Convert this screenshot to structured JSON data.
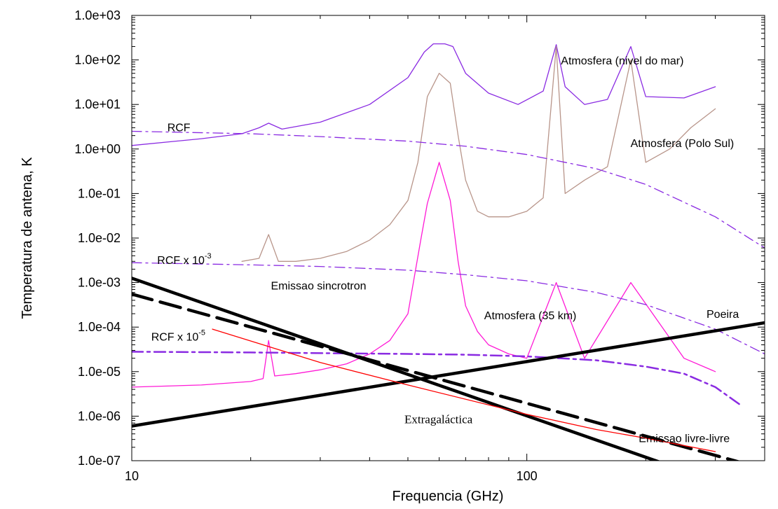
{
  "chart_data": {
    "type": "line",
    "xlabel": "Frequencia (GHz)",
    "ylabel": "Temperatura de antena, K",
    "x_scale": "log",
    "y_scale": "log",
    "xlim": [
      10,
      400
    ],
    "ylim": [
      1e-07,
      1000
    ],
    "x_ticks": [
      {
        "value": 10,
        "label": "10"
      },
      {
        "value": 100,
        "label": "100"
      }
    ],
    "y_ticks": [
      {
        "value": 1000,
        "label": "1.0e+03"
      },
      {
        "value": 100,
        "label": "1.0e+02"
      },
      {
        "value": 10,
        "label": "1.0e+01"
      },
      {
        "value": 1,
        "label": "1.0e+00"
      },
      {
        "value": 0.1,
        "label": "1.0e-01"
      },
      {
        "value": 0.01,
        "label": "1.0e-02"
      },
      {
        "value": 0.001,
        "label": "1.0e-03"
      },
      {
        "value": 0.0001,
        "label": "1.0e-04"
      },
      {
        "value": 1e-05,
        "label": "1.0e-05"
      },
      {
        "value": 1e-06,
        "label": "1.0e-06"
      },
      {
        "value": 1e-07,
        "label": "1.0e-07"
      }
    ],
    "grid": false,
    "series": [
      {
        "name": "Atmosfera (nivel do mar)",
        "color": "#8a2be2",
        "style": "solid",
        "x": [
          10,
          15,
          19,
          21,
          22.2,
          24,
          30,
          40,
          50,
          55,
          58,
          60,
          62,
          65,
          70,
          80,
          95,
          110,
          118.7,
          125,
          140,
          160,
          183.3,
          200,
          250,
          300
        ],
        "y": [
          1.2,
          1.7,
          2.2,
          3.0,
          3.8,
          2.8,
          4,
          10,
          40,
          150,
          230,
          230,
          230,
          200,
          50,
          18,
          10,
          20,
          220,
          25,
          10,
          13,
          200,
          15,
          14,
          25
        ]
      },
      {
        "name": "Atmosfera (Polo Sul)",
        "color": "#b8958a",
        "style": "solid",
        "x": [
          19,
          21,
          22.2,
          23.5,
          26,
          30,
          35,
          40,
          45,
          50,
          53,
          56,
          60,
          64,
          67,
          70,
          75,
          80,
          90,
          100,
          110,
          118.7,
          125,
          140,
          160,
          183.3,
          200,
          230,
          260,
          300
        ],
        "y": [
          0.003,
          0.0035,
          0.012,
          0.003,
          0.003,
          0.0035,
          0.005,
          0.009,
          0.02,
          0.07,
          0.5,
          15,
          50,
          30,
          2,
          0.2,
          0.04,
          0.03,
          0.03,
          0.04,
          0.08,
          200,
          0.1,
          0.2,
          0.4,
          100,
          0.5,
          1,
          3,
          8
        ]
      },
      {
        "name": "Atmosfera (35 km)",
        "color": "#ff19d6",
        "style": "solid",
        "x": [
          10,
          15,
          20,
          21.5,
          22.2,
          23,
          26,
          30,
          35,
          40,
          45,
          50,
          54,
          56,
          60,
          64,
          67,
          70,
          75,
          80,
          90,
          100,
          118.7,
          140,
          183.3,
          250,
          300
        ],
        "y": [
          4.5e-06,
          5e-06,
          6e-06,
          7e-06,
          5e-05,
          8e-06,
          9e-06,
          1.1e-05,
          1.5e-05,
          2.5e-05,
          5e-05,
          0.0002,
          0.01,
          0.06,
          0.5,
          0.07,
          0.003,
          0.0003,
          8e-05,
          4e-05,
          2.5e-05,
          2e-05,
          0.001,
          2e-05,
          0.001,
          2e-05,
          1e-05
        ]
      },
      {
        "name": "RCF",
        "color": "#8a2be2",
        "style": "dashdot",
        "x": [
          10,
          20,
          30,
          50,
          70,
          100,
          150,
          200,
          300,
          400
        ],
        "y": [
          2.5,
          2.2,
          1.9,
          1.5,
          1.15,
          0.75,
          0.36,
          0.16,
          0.03,
          0.006
        ]
      },
      {
        "name": "RCF x 10-3",
        "color": "#8a2be2",
        "style": "dashdot",
        "x": [
          10,
          20,
          30,
          50,
          70,
          100,
          150,
          200,
          300,
          400
        ],
        "y": [
          0.0028,
          0.0025,
          0.0023,
          0.0019,
          0.0015,
          0.0011,
          0.0006,
          0.00032,
          9e-05,
          2.5e-05
        ]
      },
      {
        "name": "RCF x 10-5",
        "color": "#8a2be2",
        "style": "dashdot-thick",
        "x": [
          10,
          20,
          30,
          50,
          70,
          100,
          150,
          200,
          250,
          300,
          350
        ],
        "y": [
          2.8e-05,
          2.7e-05,
          2.6e-05,
          2.5e-05,
          2.4e-05,
          2.2e-05,
          1.8e-05,
          1.3e-05,
          9e-06,
          4.5e-06,
          1.7e-06
        ]
      },
      {
        "name": "Emissao sincrotron",
        "color": "#000000",
        "style": "solid-thick",
        "x": [
          10,
          250
        ],
        "y": [
          0.00125,
          6e-08
        ]
      },
      {
        "name": "Emissao livre-livre",
        "color": "#000000",
        "style": "longdash-thick",
        "x": [
          10,
          350
        ],
        "y": [
          0.00055,
          9e-08
        ]
      },
      {
        "name": "Poeira",
        "color": "#000000",
        "style": "solid-thick",
        "x": [
          10,
          400
        ],
        "y": [
          6e-07,
          0.000125
        ]
      },
      {
        "name": "Extragaláctica",
        "color": "#ff0000",
        "style": "solid",
        "x": [
          16,
          30,
          50,
          100,
          150,
          200,
          300
        ],
        "y": [
          9e-05,
          1.6e-05,
          5e-06,
          1.1e-06,
          5e-07,
          3.2e-07,
          1.6e-07
        ]
      }
    ],
    "annotations": [
      {
        "text": "Atmosfera (nivel do mar)",
        "x": 122,
        "y": 80
      },
      {
        "text": "Atmosfera (Polo Sul)",
        "x": 183,
        "y": 1.1
      },
      {
        "text": "Atmosfera (35 km)",
        "x": 78,
        "y": 0.00015
      },
      {
        "text": "RCF",
        "x": 12.3,
        "y": 2.5
      },
      {
        "text": "RCF x 10",
        "sup": "-3",
        "x": 11.6,
        "y": 0.0026
      },
      {
        "text": "RCF x 10",
        "sup": "-5",
        "x": 11.2,
        "y": 5e-05
      },
      {
        "text": "Emissao sincrotron",
        "x": 22.5,
        "y": 0.0007
      },
      {
        "text": "Extragaláctica",
        "x": 49,
        "y": 7e-07
      },
      {
        "text": "Emissao livre-livre",
        "x": 192,
        "y": 2.6e-07
      },
      {
        "text": "Poeira",
        "x": 285,
        "y": 0.00016
      }
    ]
  }
}
